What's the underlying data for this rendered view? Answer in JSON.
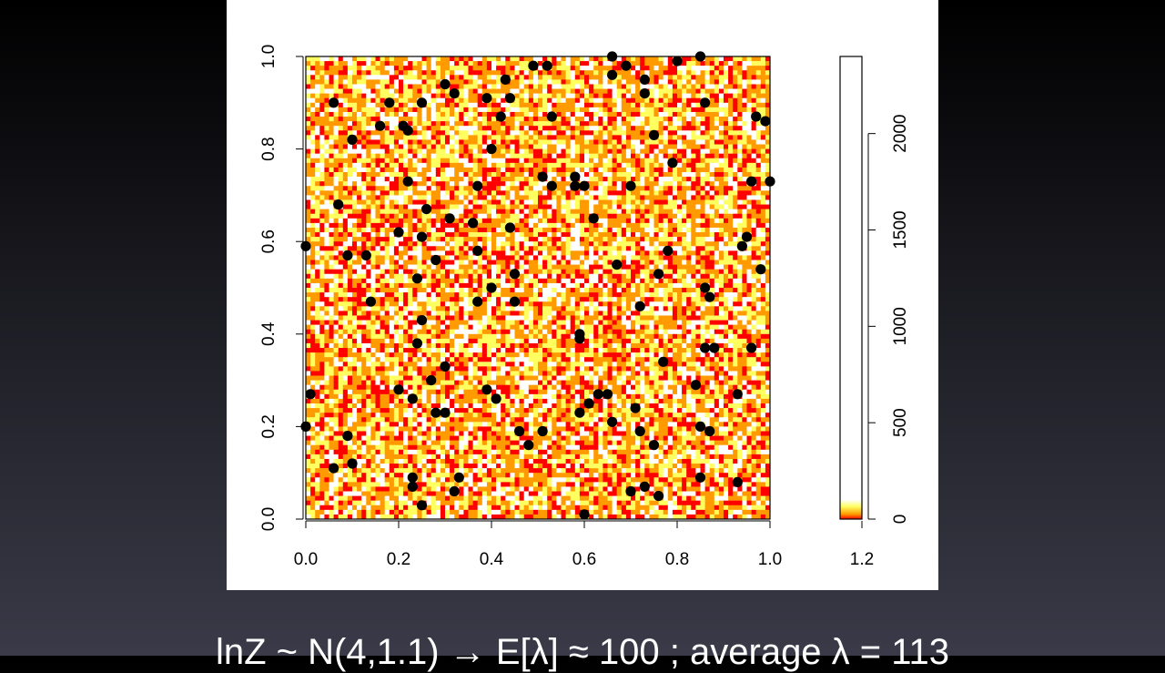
{
  "caption": "lnZ ~ N(4,1.1)  →  E[λ] ≈ 100 ; average λ = 113",
  "chart_data": {
    "type": "heatmap",
    "title": "",
    "xlabel": "",
    "ylabel": "",
    "xlim": [
      0,
      1
    ],
    "ylim": [
      0,
      1
    ],
    "x_ticks": [
      "0.0",
      "0.2",
      "0.4",
      "0.6",
      "0.8",
      "1.0"
    ],
    "y_ticks": [
      "0.0",
      "0.2",
      "0.4",
      "0.6",
      "0.8",
      "1.0"
    ],
    "grid_resolution": 100,
    "palette": [
      "#ff0000",
      "#ff9a00",
      "#ffff60",
      "#ffffff"
    ],
    "legend": {
      "type": "colorbar",
      "range": [
        0,
        2400
      ],
      "tick_labels": [
        "0",
        "500",
        "1000",
        "1500",
        "2000"
      ],
      "colorbar_x_ticks": [
        "1.2"
      ]
    },
    "points": [
      [
        0.0,
        0.2
      ],
      [
        0.0,
        0.59
      ],
      [
        0.01,
        0.27
      ],
      [
        0.06,
        0.11
      ],
      [
        0.06,
        0.9
      ],
      [
        0.07,
        0.68
      ],
      [
        0.09,
        0.18
      ],
      [
        0.09,
        0.57
      ],
      [
        0.1,
        0.12
      ],
      [
        0.1,
        0.82
      ],
      [
        0.13,
        0.57
      ],
      [
        0.14,
        0.47
      ],
      [
        0.16,
        0.85
      ],
      [
        0.18,
        0.9
      ],
      [
        0.2,
        0.62
      ],
      [
        0.2,
        0.28
      ],
      [
        0.21,
        0.85
      ],
      [
        0.22,
        0.73
      ],
      [
        0.22,
        0.84
      ],
      [
        0.23,
        0.07
      ],
      [
        0.23,
        0.09
      ],
      [
        0.23,
        0.26
      ],
      [
        0.24,
        0.38
      ],
      [
        0.24,
        0.52
      ],
      [
        0.25,
        0.61
      ],
      [
        0.25,
        0.43
      ],
      [
        0.25,
        0.03
      ],
      [
        0.25,
        0.9
      ],
      [
        0.26,
        0.67
      ],
      [
        0.27,
        0.3
      ],
      [
        0.28,
        0.56
      ],
      [
        0.28,
        0.23
      ],
      [
        0.3,
        0.23
      ],
      [
        0.3,
        0.33
      ],
      [
        0.3,
        0.94
      ],
      [
        0.31,
        0.65
      ],
      [
        0.32,
        0.92
      ],
      [
        0.32,
        0.06
      ],
      [
        0.33,
        0.09
      ],
      [
        0.36,
        0.64
      ],
      [
        0.37,
        0.72
      ],
      [
        0.37,
        0.58
      ],
      [
        0.37,
        0.47
      ],
      [
        0.39,
        0.28
      ],
      [
        0.39,
        0.91
      ],
      [
        0.4,
        0.8
      ],
      [
        0.4,
        0.5
      ],
      [
        0.41,
        0.26
      ],
      [
        0.42,
        0.87
      ],
      [
        0.43,
        0.95
      ],
      [
        0.44,
        0.91
      ],
      [
        0.44,
        0.63
      ],
      [
        0.45,
        0.53
      ],
      [
        0.45,
        0.47
      ],
      [
        0.46,
        0.19
      ],
      [
        0.48,
        0.16
      ],
      [
        0.49,
        0.98
      ],
      [
        0.51,
        0.74
      ],
      [
        0.51,
        0.19
      ],
      [
        0.52,
        0.98
      ],
      [
        0.53,
        0.72
      ],
      [
        0.53,
        0.87
      ],
      [
        0.58,
        0.72
      ],
      [
        0.58,
        0.74
      ],
      [
        0.59,
        0.23
      ],
      [
        0.59,
        0.39
      ],
      [
        0.59,
        0.4
      ],
      [
        0.6,
        0.01
      ],
      [
        0.6,
        0.72
      ],
      [
        0.61,
        0.25
      ],
      [
        0.62,
        0.65
      ],
      [
        0.63,
        0.27
      ],
      [
        0.65,
        0.27
      ],
      [
        0.66,
        0.21
      ],
      [
        0.66,
        1.0
      ],
      [
        0.66,
        0.96
      ],
      [
        0.67,
        0.55
      ],
      [
        0.69,
        0.98
      ],
      [
        0.7,
        0.72
      ],
      [
        0.7,
        0.06
      ],
      [
        0.71,
        0.24
      ],
      [
        0.72,
        0.46
      ],
      [
        0.72,
        0.19
      ],
      [
        0.73,
        0.07
      ],
      [
        0.73,
        0.95
      ],
      [
        0.73,
        0.92
      ],
      [
        0.75,
        0.16
      ],
      [
        0.75,
        0.83
      ],
      [
        0.76,
        0.05
      ],
      [
        0.76,
        0.53
      ],
      [
        0.77,
        0.34
      ],
      [
        0.78,
        0.58
      ],
      [
        0.79,
        0.77
      ],
      [
        0.8,
        0.99
      ],
      [
        0.84,
        0.29
      ],
      [
        0.85,
        0.09
      ],
      [
        0.85,
        0.2
      ],
      [
        0.85,
        1.0
      ],
      [
        0.86,
        0.37
      ],
      [
        0.86,
        0.9
      ],
      [
        0.86,
        0.5
      ],
      [
        0.87,
        0.48
      ],
      [
        0.87,
        0.19
      ],
      [
        0.88,
        0.37
      ],
      [
        0.93,
        0.27
      ],
      [
        0.93,
        0.08
      ],
      [
        0.94,
        0.59
      ],
      [
        0.95,
        0.61
      ],
      [
        0.96,
        0.73
      ],
      [
        0.96,
        0.37
      ],
      [
        0.97,
        0.87
      ],
      [
        0.98,
        0.54
      ],
      [
        0.99,
        0.86
      ],
      [
        1.0,
        0.73
      ]
    ]
  }
}
